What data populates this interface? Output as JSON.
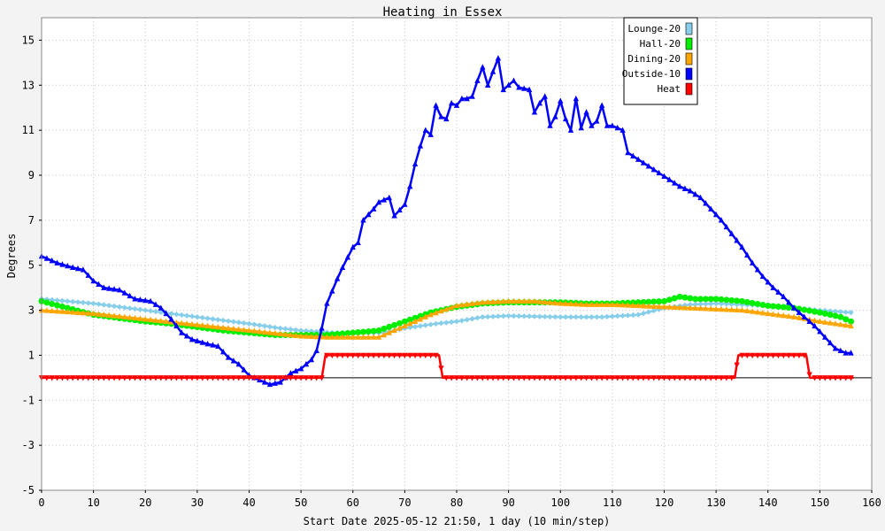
{
  "chart_data": {
    "type": "line",
    "title": "Heating in Essex",
    "xlabel": "Start Date 2025-05-12 21:50, 1 day (10 min/step)",
    "ylabel": "Degrees",
    "xlim": [
      0,
      160
    ],
    "ylim": [
      -5,
      16
    ],
    "xticks": [
      0,
      10,
      20,
      30,
      40,
      50,
      60,
      70,
      80,
      90,
      100,
      110,
      120,
      130,
      140,
      150,
      160
    ],
    "yticks": [
      -5,
      -3,
      -1,
      1,
      3,
      5,
      7,
      9,
      11,
      13,
      15
    ],
    "grid": true,
    "zero_line": true,
    "legend_position": "top-right",
    "series": [
      {
        "name": "Lounge-20",
        "color": "#87ceeb",
        "marker": "diamond",
        "points": [
          [
            0,
            3.5
          ],
          [
            10,
            3.3
          ],
          [
            20,
            3.0
          ],
          [
            30,
            2.7
          ],
          [
            40,
            2.4
          ],
          [
            46,
            2.2
          ],
          [
            50,
            2.1
          ],
          [
            56,
            2.0
          ],
          [
            60,
            2.0
          ],
          [
            66,
            2.0
          ],
          [
            70,
            2.2
          ],
          [
            76,
            2.4
          ],
          [
            80,
            2.5
          ],
          [
            85,
            2.7
          ],
          [
            90,
            2.75
          ],
          [
            100,
            2.7
          ],
          [
            108,
            2.7
          ],
          [
            115,
            2.8
          ],
          [
            120,
            3.1
          ],
          [
            125,
            3.25
          ],
          [
            130,
            3.3
          ],
          [
            140,
            3.2
          ],
          [
            150,
            3.0
          ],
          [
            156,
            2.9
          ]
        ]
      },
      {
        "name": "Hall-20",
        "color": "#00ee00",
        "marker": "circle",
        "points": [
          [
            0,
            3.4
          ],
          [
            5,
            3.1
          ],
          [
            10,
            2.8
          ],
          [
            15,
            2.65
          ],
          [
            20,
            2.5
          ],
          [
            25,
            2.4
          ],
          [
            30,
            2.25
          ],
          [
            35,
            2.1
          ],
          [
            40,
            2.0
          ],
          [
            45,
            1.9
          ],
          [
            50,
            1.9
          ],
          [
            55,
            1.9
          ],
          [
            60,
            2.0
          ],
          [
            65,
            2.1
          ],
          [
            70,
            2.5
          ],
          [
            75,
            2.9
          ],
          [
            80,
            3.15
          ],
          [
            85,
            3.3
          ],
          [
            90,
            3.35
          ],
          [
            95,
            3.35
          ],
          [
            100,
            3.35
          ],
          [
            105,
            3.3
          ],
          [
            110,
            3.3
          ],
          [
            115,
            3.35
          ],
          [
            120,
            3.4
          ],
          [
            123,
            3.6
          ],
          [
            126,
            3.5
          ],
          [
            130,
            3.5
          ],
          [
            135,
            3.4
          ],
          [
            140,
            3.2
          ],
          [
            145,
            3.1
          ],
          [
            150,
            2.9
          ],
          [
            154,
            2.7
          ],
          [
            156,
            2.5
          ]
        ]
      },
      {
        "name": "Dining-20",
        "color": "#ffa500",
        "marker": "triangle-up",
        "points": [
          [
            0,
            3.0
          ],
          [
            10,
            2.85
          ],
          [
            20,
            2.6
          ],
          [
            30,
            2.35
          ],
          [
            40,
            2.1
          ],
          [
            50,
            1.85
          ],
          [
            55,
            1.8
          ],
          [
            60,
            1.8
          ],
          [
            65,
            1.8
          ],
          [
            70,
            2.3
          ],
          [
            75,
            2.8
          ],
          [
            80,
            3.2
          ],
          [
            85,
            3.35
          ],
          [
            90,
            3.4
          ],
          [
            95,
            3.4
          ],
          [
            100,
            3.3
          ],
          [
            105,
            3.25
          ],
          [
            110,
            3.25
          ],
          [
            115,
            3.2
          ],
          [
            120,
            3.15
          ],
          [
            125,
            3.1
          ],
          [
            130,
            3.05
          ],
          [
            135,
            3.0
          ],
          [
            140,
            2.85
          ],
          [
            145,
            2.7
          ],
          [
            150,
            2.5
          ],
          [
            156,
            2.3
          ]
        ]
      },
      {
        "name": "Outside-10",
        "color": "#0000ff",
        "marker": "triangle-up",
        "points": [
          [
            0,
            5.4
          ],
          [
            3,
            5.1
          ],
          [
            6,
            4.9
          ],
          [
            8,
            4.8
          ],
          [
            10,
            4.3
          ],
          [
            12,
            4.0
          ],
          [
            15,
            3.9
          ],
          [
            18,
            3.5
          ],
          [
            21,
            3.4
          ],
          [
            23,
            3.1
          ],
          [
            25,
            2.6
          ],
          [
            27,
            2.0
          ],
          [
            29,
            1.7
          ],
          [
            32,
            1.5
          ],
          [
            34,
            1.4
          ],
          [
            36,
            0.9
          ],
          [
            38,
            0.6
          ],
          [
            40,
            0.1
          ],
          [
            42,
            -0.1
          ],
          [
            44,
            -0.3
          ],
          [
            46,
            -0.2
          ],
          [
            48,
            0.2
          ],
          [
            50,
            0.4
          ],
          [
            52,
            0.8
          ],
          [
            53,
            1.2
          ],
          [
            54,
            2.2
          ],
          [
            55,
            3.3
          ],
          [
            57,
            4.4
          ],
          [
            58,
            4.9
          ],
          [
            60,
            5.8
          ],
          [
            61,
            6.0
          ],
          [
            62,
            7.0
          ],
          [
            64,
            7.5
          ],
          [
            65,
            7.8
          ],
          [
            67,
            8.0
          ],
          [
            68,
            7.2
          ],
          [
            70,
            7.7
          ],
          [
            71,
            8.5
          ],
          [
            72,
            9.5
          ],
          [
            73,
            10.3
          ],
          [
            74,
            11.0
          ],
          [
            75,
            10.8
          ],
          [
            76,
            12.1
          ],
          [
            77,
            11.6
          ],
          [
            78,
            11.5
          ],
          [
            79,
            12.2
          ],
          [
            80,
            12.1
          ],
          [
            81,
            12.4
          ],
          [
            82,
            12.4
          ],
          [
            83,
            12.5
          ],
          [
            84,
            13.2
          ],
          [
            85,
            13.8
          ],
          [
            86,
            13.0
          ],
          [
            88,
            14.2
          ],
          [
            89,
            12.8
          ],
          [
            90,
            13.0
          ],
          [
            91,
            13.2
          ],
          [
            92,
            12.9
          ],
          [
            94,
            12.8
          ],
          [
            95,
            11.8
          ],
          [
            96,
            12.2
          ],
          [
            97,
            12.5
          ],
          [
            98,
            11.2
          ],
          [
            99,
            11.6
          ],
          [
            100,
            12.3
          ],
          [
            101,
            11.5
          ],
          [
            102,
            11.0
          ],
          [
            103,
            12.4
          ],
          [
            104,
            11.1
          ],
          [
            105,
            11.8
          ],
          [
            106,
            11.2
          ],
          [
            107,
            11.4
          ],
          [
            108,
            12.1
          ],
          [
            109,
            11.2
          ],
          [
            110,
            11.2
          ],
          [
            111,
            11.1
          ],
          [
            112,
            11.0
          ],
          [
            113,
            10.0
          ],
          [
            115,
            9.7
          ],
          [
            117,
            9.4
          ],
          [
            119,
            9.1
          ],
          [
            121,
            8.8
          ],
          [
            123,
            8.5
          ],
          [
            125,
            8.3
          ],
          [
            127,
            8.0
          ],
          [
            129,
            7.5
          ],
          [
            131,
            7.0
          ],
          [
            133,
            6.4
          ],
          [
            135,
            5.8
          ],
          [
            137,
            5.1
          ],
          [
            139,
            4.5
          ],
          [
            141,
            4.0
          ],
          [
            143,
            3.6
          ],
          [
            145,
            3.1
          ],
          [
            147,
            2.7
          ],
          [
            149,
            2.3
          ],
          [
            151,
            1.8
          ],
          [
            153,
            1.3
          ],
          [
            155,
            1.1
          ],
          [
            156,
            1.1
          ]
        ]
      },
      {
        "name": "Heat",
        "color": "#ff0000",
        "marker": "triangle-down",
        "points": [
          [
            0,
            0
          ],
          [
            54,
            0
          ],
          [
            54.7,
            1
          ],
          [
            76.6,
            1
          ],
          [
            77.3,
            0
          ],
          [
            133.6,
            0
          ],
          [
            134.3,
            1
          ],
          [
            147.4,
            1
          ],
          [
            148.1,
            0
          ],
          [
            156.5,
            0
          ]
        ]
      }
    ]
  }
}
